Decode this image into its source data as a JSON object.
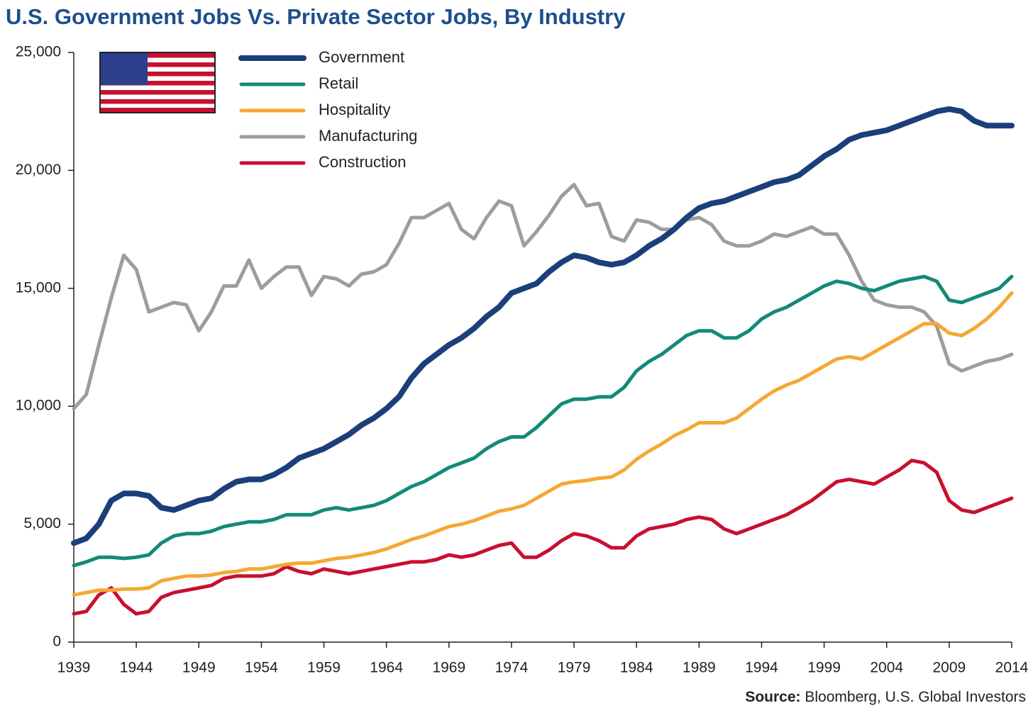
{
  "chart_data": {
    "type": "line",
    "title": "U.S. Government Jobs Vs. Private Sector Jobs, By Industry",
    "source_label": "Source:",
    "source": "Bloomberg, U.S. Global Investors",
    "x": [
      1939,
      1940,
      1941,
      1942,
      1943,
      1944,
      1945,
      1946,
      1947,
      1948,
      1949,
      1950,
      1951,
      1952,
      1953,
      1954,
      1955,
      1956,
      1957,
      1958,
      1959,
      1960,
      1961,
      1962,
      1963,
      1964,
      1965,
      1966,
      1967,
      1968,
      1969,
      1970,
      1971,
      1972,
      1973,
      1974,
      1975,
      1976,
      1977,
      1978,
      1979,
      1980,
      1981,
      1982,
      1983,
      1984,
      1985,
      1986,
      1987,
      1988,
      1989,
      1990,
      1991,
      1992,
      1993,
      1994,
      1995,
      1996,
      1997,
      1998,
      1999,
      2000,
      2001,
      2002,
      2003,
      2004,
      2005,
      2006,
      2007,
      2008,
      2009,
      2010,
      2011,
      2012,
      2013,
      2014
    ],
    "series": [
      {
        "name": "Government",
        "color": "#1a3f7a",
        "width": 8,
        "values": [
          4200,
          4400,
          5000,
          6000,
          6300,
          6300,
          6200,
          5700,
          5600,
          5800,
          6000,
          6100,
          6500,
          6800,
          6900,
          6900,
          7100,
          7400,
          7800,
          8000,
          8200,
          8500,
          8800,
          9200,
          9500,
          9900,
          10400,
          11200,
          11800,
          12200,
          12600,
          12900,
          13300,
          13800,
          14200,
          14800,
          15000,
          15200,
          15700,
          16100,
          16400,
          16300,
          16100,
          16000,
          16100,
          16400,
          16800,
          17100,
          17500,
          18000,
          18400,
          18600,
          18700,
          18900,
          19100,
          19300,
          19500,
          19600,
          19800,
          20200,
          20600,
          20900,
          21300,
          21500,
          21600,
          21700,
          21900,
          22100,
          22300,
          22500,
          22600,
          22500,
          22100,
          21900,
          21900,
          21900
        ]
      },
      {
        "name": "Retail",
        "color": "#128a78",
        "width": 5,
        "values": [
          3250,
          3400,
          3600,
          3600,
          3550,
          3600,
          3700,
          4200,
          4500,
          4600,
          4600,
          4700,
          4900,
          5000,
          5100,
          5100,
          5200,
          5400,
          5400,
          5400,
          5600,
          5700,
          5600,
          5700,
          5800,
          6000,
          6300,
          6600,
          6800,
          7100,
          7400,
          7600,
          7800,
          8200,
          8500,
          8700,
          8700,
          9100,
          9600,
          10100,
          10300,
          10300,
          10400,
          10400,
          10800,
          11500,
          11900,
          12200,
          12600,
          13000,
          13200,
          13200,
          12900,
          12900,
          13200,
          13700,
          14000,
          14200,
          14500,
          14800,
          15100,
          15300,
          15200,
          15000,
          14900,
          15100,
          15300,
          15400,
          15500,
          15300,
          14500,
          14400,
          14600,
          14800,
          15000,
          15500
        ]
      },
      {
        "name": "Hospitality",
        "color": "#f5a833",
        "width": 5,
        "values": [
          2000,
          2100,
          2200,
          2200,
          2250,
          2250,
          2300,
          2600,
          2700,
          2800,
          2800,
          2850,
          2950,
          3000,
          3100,
          3100,
          3200,
          3300,
          3350,
          3350,
          3450,
          3550,
          3600,
          3700,
          3800,
          3950,
          4150,
          4350,
          4500,
          4700,
          4900,
          5000,
          5150,
          5350,
          5550,
          5650,
          5800,
          6100,
          6400,
          6700,
          6800,
          6850,
          6950,
          7000,
          7300,
          7750,
          8100,
          8400,
          8750,
          9000,
          9300,
          9300,
          9300,
          9500,
          9900,
          10300,
          10650,
          10900,
          11100,
          11400,
          11700,
          12000,
          12100,
          12000,
          12300,
          12600,
          12900,
          13200,
          13500,
          13500,
          13100,
          13000,
          13300,
          13700,
          14200,
          14800
        ]
      },
      {
        "name": "Manufacturing",
        "color": "#9d9d9d",
        "width": 5,
        "values": [
          9900,
          10500,
          12600,
          14600,
          16400,
          15800,
          14000,
          14200,
          14400,
          14300,
          13200,
          14000,
          15100,
          15100,
          16200,
          15000,
          15500,
          15900,
          15900,
          14700,
          15500,
          15400,
          15100,
          15600,
          15700,
          16000,
          16900,
          18000,
          18000,
          18300,
          18600,
          17500,
          17100,
          18000,
          18700,
          18500,
          16800,
          17400,
          18100,
          18900,
          19400,
          18500,
          18600,
          17200,
          17000,
          17900,
          17800,
          17500,
          17500,
          17900,
          18000,
          17700,
          17000,
          16800,
          16800,
          17000,
          17300,
          17200,
          17400,
          17600,
          17300,
          17300,
          16400,
          15300,
          14500,
          14300,
          14200,
          14200,
          14000,
          13400,
          11800,
          11500,
          11700,
          11900,
          12000,
          12200
        ]
      },
      {
        "name": "Construction",
        "color": "#c8102e",
        "width": 5,
        "values": [
          1200,
          1300,
          2000,
          2300,
          1600,
          1200,
          1300,
          1900,
          2100,
          2200,
          2300,
          2400,
          2700,
          2800,
          2800,
          2800,
          2900,
          3200,
          3000,
          2900,
          3100,
          3000,
          2900,
          3000,
          3100,
          3200,
          3300,
          3400,
          3400,
          3500,
          3700,
          3600,
          3700,
          3900,
          4100,
          4200,
          3600,
          3600,
          3900,
          4300,
          4600,
          4500,
          4300,
          4000,
          4000,
          4500,
          4800,
          4900,
          5000,
          5200,
          5300,
          5200,
          4800,
          4600,
          4800,
          5000,
          5200,
          5400,
          5700,
          6000,
          6400,
          6800,
          6900,
          6800,
          6700,
          7000,
          7300,
          7700,
          7600,
          7200,
          6000,
          5600,
          5500,
          5700,
          5900,
          6100
        ]
      }
    ],
    "xlim": [
      1939,
      2014
    ],
    "xticks": [
      1939,
      1944,
      1949,
      1954,
      1959,
      1964,
      1969,
      1974,
      1979,
      1984,
      1989,
      1994,
      1999,
      2004,
      2009,
      2014
    ],
    "ylim": [
      0,
      25000
    ],
    "yticks": [
      0,
      {
        "value": 5000,
        "label": "5,000"
      },
      {
        "value": 10000,
        "label": "10,000"
      },
      {
        "value": 15000,
        "label": "15,000"
      },
      {
        "value": 20000,
        "label": "20,000"
      },
      {
        "value": 25000,
        "label": "25,000"
      }
    ]
  }
}
